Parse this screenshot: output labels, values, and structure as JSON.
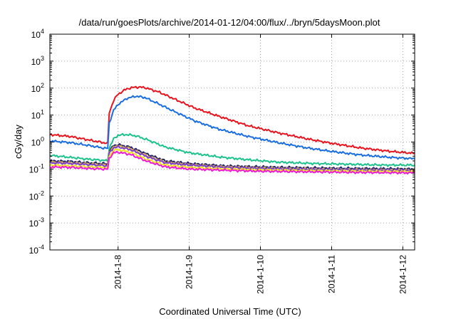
{
  "chart_data": {
    "type": "line",
    "title": "/data/run/goesPlots/archive/2014-01-12/04:00/flux/../bryn/5daysMoon.plot",
    "xlabel": "Coordinated Universal Time (UTC)",
    "ylabel": "cGy/day",
    "yscale": "log",
    "ylim": [
      0.0001,
      10000
    ],
    "xlim": [
      "2014-01-07T01:00",
      "2014-01-12T04:00"
    ],
    "grid": true,
    "y_ticks": [
      {
        "base": "10",
        "exp": "-4"
      },
      {
        "base": "10",
        "exp": "-3"
      },
      {
        "base": "10",
        "exp": "-2"
      },
      {
        "base": "10",
        "exp": "-1"
      },
      {
        "base": "10",
        "exp": "0"
      },
      {
        "base": "10",
        "exp": "1"
      },
      {
        "base": "10",
        "exp": "2"
      },
      {
        "base": "10",
        "exp": "3"
      },
      {
        "base": "10",
        "exp": "4"
      }
    ],
    "x_ticks": [
      "2014-1-8",
      "2014-1-9",
      "2014-1-10",
      "2014-1-11",
      "2014-1-12"
    ],
    "x_tick_dates": [
      "2014-01-08T00:00",
      "2014-01-09T00:00",
      "2014-01-10T00:00",
      "2014-01-11T00:00",
      "2014-01-12T00:00"
    ],
    "series": [
      {
        "color": "#e8141e",
        "points": [
          [
            "2014-01-07T01:00",
            1.9
          ],
          [
            "2014-01-07T08:00",
            1.6
          ],
          [
            "2014-01-07T14:00",
            1.2
          ],
          [
            "2014-01-07T19:00",
            0.95
          ],
          [
            "2014-01-07T20:30",
            0.9
          ],
          [
            "2014-01-07T21:00",
            12
          ],
          [
            "2014-01-07T22:30",
            35
          ],
          [
            "2014-01-08T00:00",
            60
          ],
          [
            "2014-01-08T03:00",
            95
          ],
          [
            "2014-01-08T06:00",
            110
          ],
          [
            "2014-01-08T09:00",
            105
          ],
          [
            "2014-01-08T14:00",
            70
          ],
          [
            "2014-01-08T20:00",
            35
          ],
          [
            "2014-01-09T02:00",
            18
          ],
          [
            "2014-01-09T10:00",
            9
          ],
          [
            "2014-01-09T20:00",
            4
          ],
          [
            "2014-01-10T06:00",
            2.2
          ],
          [
            "2014-01-10T16:00",
            1.3
          ],
          [
            "2014-01-11T00:00",
            0.9
          ],
          [
            "2014-01-11T10:00",
            0.6
          ],
          [
            "2014-01-11T20:00",
            0.45
          ],
          [
            "2014-01-12T04:00",
            0.38
          ]
        ]
      },
      {
        "color": "#1a6ee0",
        "points": [
          [
            "2014-01-07T01:00",
            1.1
          ],
          [
            "2014-01-07T08:00",
            0.95
          ],
          [
            "2014-01-07T14:00",
            0.75
          ],
          [
            "2014-01-07T19:00",
            0.6
          ],
          [
            "2014-01-07T20:30",
            0.58
          ],
          [
            "2014-01-07T21:00",
            5
          ],
          [
            "2014-01-07T22:30",
            15
          ],
          [
            "2014-01-08T00:00",
            25
          ],
          [
            "2014-01-08T03:00",
            42
          ],
          [
            "2014-01-08T06:00",
            50
          ],
          [
            "2014-01-08T09:00",
            45
          ],
          [
            "2014-01-08T14:00",
            25
          ],
          [
            "2014-01-08T20:00",
            12
          ],
          [
            "2014-01-09T02:00",
            6
          ],
          [
            "2014-01-09T10:00",
            3
          ],
          [
            "2014-01-09T20:00",
            1.6
          ],
          [
            "2014-01-10T06:00",
            0.95
          ],
          [
            "2014-01-10T16:00",
            0.6
          ],
          [
            "2014-01-11T00:00",
            0.45
          ],
          [
            "2014-01-11T10:00",
            0.33
          ],
          [
            "2014-01-11T20:00",
            0.27
          ],
          [
            "2014-01-12T04:00",
            0.24
          ]
        ]
      },
      {
        "color": "#1ec38c",
        "points": [
          [
            "2014-01-07T01:00",
            0.32
          ],
          [
            "2014-01-07T08:00",
            0.27
          ],
          [
            "2014-01-07T14:00",
            0.23
          ],
          [
            "2014-01-07T19:00",
            0.21
          ],
          [
            "2014-01-07T20:30",
            0.2
          ],
          [
            "2014-01-07T21:00",
            0.6
          ],
          [
            "2014-01-07T22:30",
            1.3
          ],
          [
            "2014-01-08T00:00",
            1.8
          ],
          [
            "2014-01-08T03:00",
            1.9
          ],
          [
            "2014-01-08T06:00",
            1.7
          ],
          [
            "2014-01-08T10:00",
            1.2
          ],
          [
            "2014-01-08T16:00",
            0.65
          ],
          [
            "2014-01-09T00:00",
            0.4
          ],
          [
            "2014-01-09T10:00",
            0.28
          ],
          [
            "2014-01-09T20:00",
            0.22
          ],
          [
            "2014-01-10T06:00",
            0.18
          ],
          [
            "2014-01-10T18:00",
            0.16
          ],
          [
            "2014-01-11T06:00",
            0.15
          ],
          [
            "2014-01-11T18:00",
            0.14
          ],
          [
            "2014-01-12T04:00",
            0.14
          ]
        ]
      },
      {
        "color": "#23226e",
        "points": [
          [
            "2014-01-07T01:00",
            0.2
          ],
          [
            "2014-01-07T08:00",
            0.19
          ],
          [
            "2014-01-07T14:00",
            0.17
          ],
          [
            "2014-01-07T19:00",
            0.16
          ],
          [
            "2014-01-07T20:30",
            0.155
          ],
          [
            "2014-01-07T21:00",
            0.45
          ],
          [
            "2014-01-07T22:30",
            0.75
          ],
          [
            "2014-01-08T00:00",
            0.8
          ],
          [
            "2014-01-08T04:00",
            0.65
          ],
          [
            "2014-01-08T10:00",
            0.35
          ],
          [
            "2014-01-08T16:00",
            0.2
          ],
          [
            "2014-01-09T00:00",
            0.16
          ],
          [
            "2014-01-09T12:00",
            0.13
          ],
          [
            "2014-01-10T00:00",
            0.12
          ],
          [
            "2014-01-10T16:00",
            0.11
          ],
          [
            "2014-01-11T08:00",
            0.105
          ],
          [
            "2014-01-12T04:00",
            0.1
          ]
        ]
      },
      {
        "color": "#d4a83a",
        "points": [
          [
            "2014-01-07T01:00",
            0.18
          ],
          [
            "2014-01-07T08:00",
            0.17
          ],
          [
            "2014-01-07T14:00",
            0.155
          ],
          [
            "2014-01-07T19:00",
            0.145
          ],
          [
            "2014-01-07T20:30",
            0.14
          ],
          [
            "2014-01-07T21:00",
            0.4
          ],
          [
            "2014-01-07T22:30",
            0.68
          ],
          [
            "2014-01-08T00:00",
            0.72
          ],
          [
            "2014-01-08T04:00",
            0.58
          ],
          [
            "2014-01-08T10:00",
            0.3
          ],
          [
            "2014-01-08T16:00",
            0.18
          ],
          [
            "2014-01-09T00:00",
            0.145
          ],
          [
            "2014-01-09T12:00",
            0.12
          ],
          [
            "2014-01-10T00:00",
            0.11
          ],
          [
            "2014-01-10T16:00",
            0.1
          ],
          [
            "2014-01-11T08:00",
            0.095
          ],
          [
            "2014-01-12T04:00",
            0.09
          ]
        ]
      },
      {
        "color": "#7a3fd0",
        "points": [
          [
            "2014-01-07T01:00",
            0.17
          ],
          [
            "2014-01-07T08:00",
            0.16
          ],
          [
            "2014-01-07T14:00",
            0.145
          ],
          [
            "2014-01-07T19:00",
            0.135
          ],
          [
            "2014-01-07T20:30",
            0.13
          ],
          [
            "2014-01-07T21:00",
            0.38
          ],
          [
            "2014-01-07T22:30",
            0.62
          ],
          [
            "2014-01-08T00:00",
            0.66
          ],
          [
            "2014-01-08T04:00",
            0.53
          ],
          [
            "2014-01-08T10:00",
            0.28
          ],
          [
            "2014-01-08T16:00",
            0.17
          ],
          [
            "2014-01-09T00:00",
            0.14
          ],
          [
            "2014-01-09T12:00",
            0.115
          ],
          [
            "2014-01-10T00:00",
            0.105
          ],
          [
            "2014-01-10T16:00",
            0.097
          ],
          [
            "2014-01-11T08:00",
            0.092
          ],
          [
            "2014-01-12T04:00",
            0.088
          ]
        ]
      },
      {
        "color": "#f0e020",
        "points": [
          [
            "2014-01-07T01:00",
            0.14
          ],
          [
            "2014-01-07T08:00",
            0.13
          ],
          [
            "2014-01-07T14:00",
            0.12
          ],
          [
            "2014-01-07T19:00",
            0.115
          ],
          [
            "2014-01-07T20:30",
            0.11
          ],
          [
            "2014-01-07T21:00",
            0.3
          ],
          [
            "2014-01-07T22:30",
            0.5
          ],
          [
            "2014-01-08T00:00",
            0.52
          ],
          [
            "2014-01-08T04:00",
            0.42
          ],
          [
            "2014-01-08T10:00",
            0.22
          ],
          [
            "2014-01-08T16:00",
            0.14
          ],
          [
            "2014-01-09T00:00",
            0.115
          ],
          [
            "2014-01-09T12:00",
            0.1
          ],
          [
            "2014-01-10T00:00",
            0.092
          ],
          [
            "2014-01-10T16:00",
            0.087
          ],
          [
            "2014-01-11T08:00",
            0.083
          ],
          [
            "2014-01-12T04:00",
            0.08
          ]
        ]
      },
      {
        "color": "#ef1ad4",
        "points": [
          [
            "2014-01-07T01:00",
            0.12
          ],
          [
            "2014-01-07T08:00",
            0.115
          ],
          [
            "2014-01-07T14:00",
            0.105
          ],
          [
            "2014-01-07T19:00",
            0.1
          ],
          [
            "2014-01-07T20:30",
            0.098
          ],
          [
            "2014-01-07T21:00",
            0.25
          ],
          [
            "2014-01-07T22:30",
            0.4
          ],
          [
            "2014-01-08T00:00",
            0.42
          ],
          [
            "2014-01-08T04:00",
            0.35
          ],
          [
            "2014-01-08T10:00",
            0.19
          ],
          [
            "2014-01-08T16:00",
            0.12
          ],
          [
            "2014-01-09T00:00",
            0.1
          ],
          [
            "2014-01-09T12:00",
            0.09
          ],
          [
            "2014-01-10T00:00",
            0.083
          ],
          [
            "2014-01-10T16:00",
            0.079
          ],
          [
            "2014-01-11T08:00",
            0.075
          ],
          [
            "2014-01-12T04:00",
            0.072
          ]
        ]
      }
    ]
  }
}
